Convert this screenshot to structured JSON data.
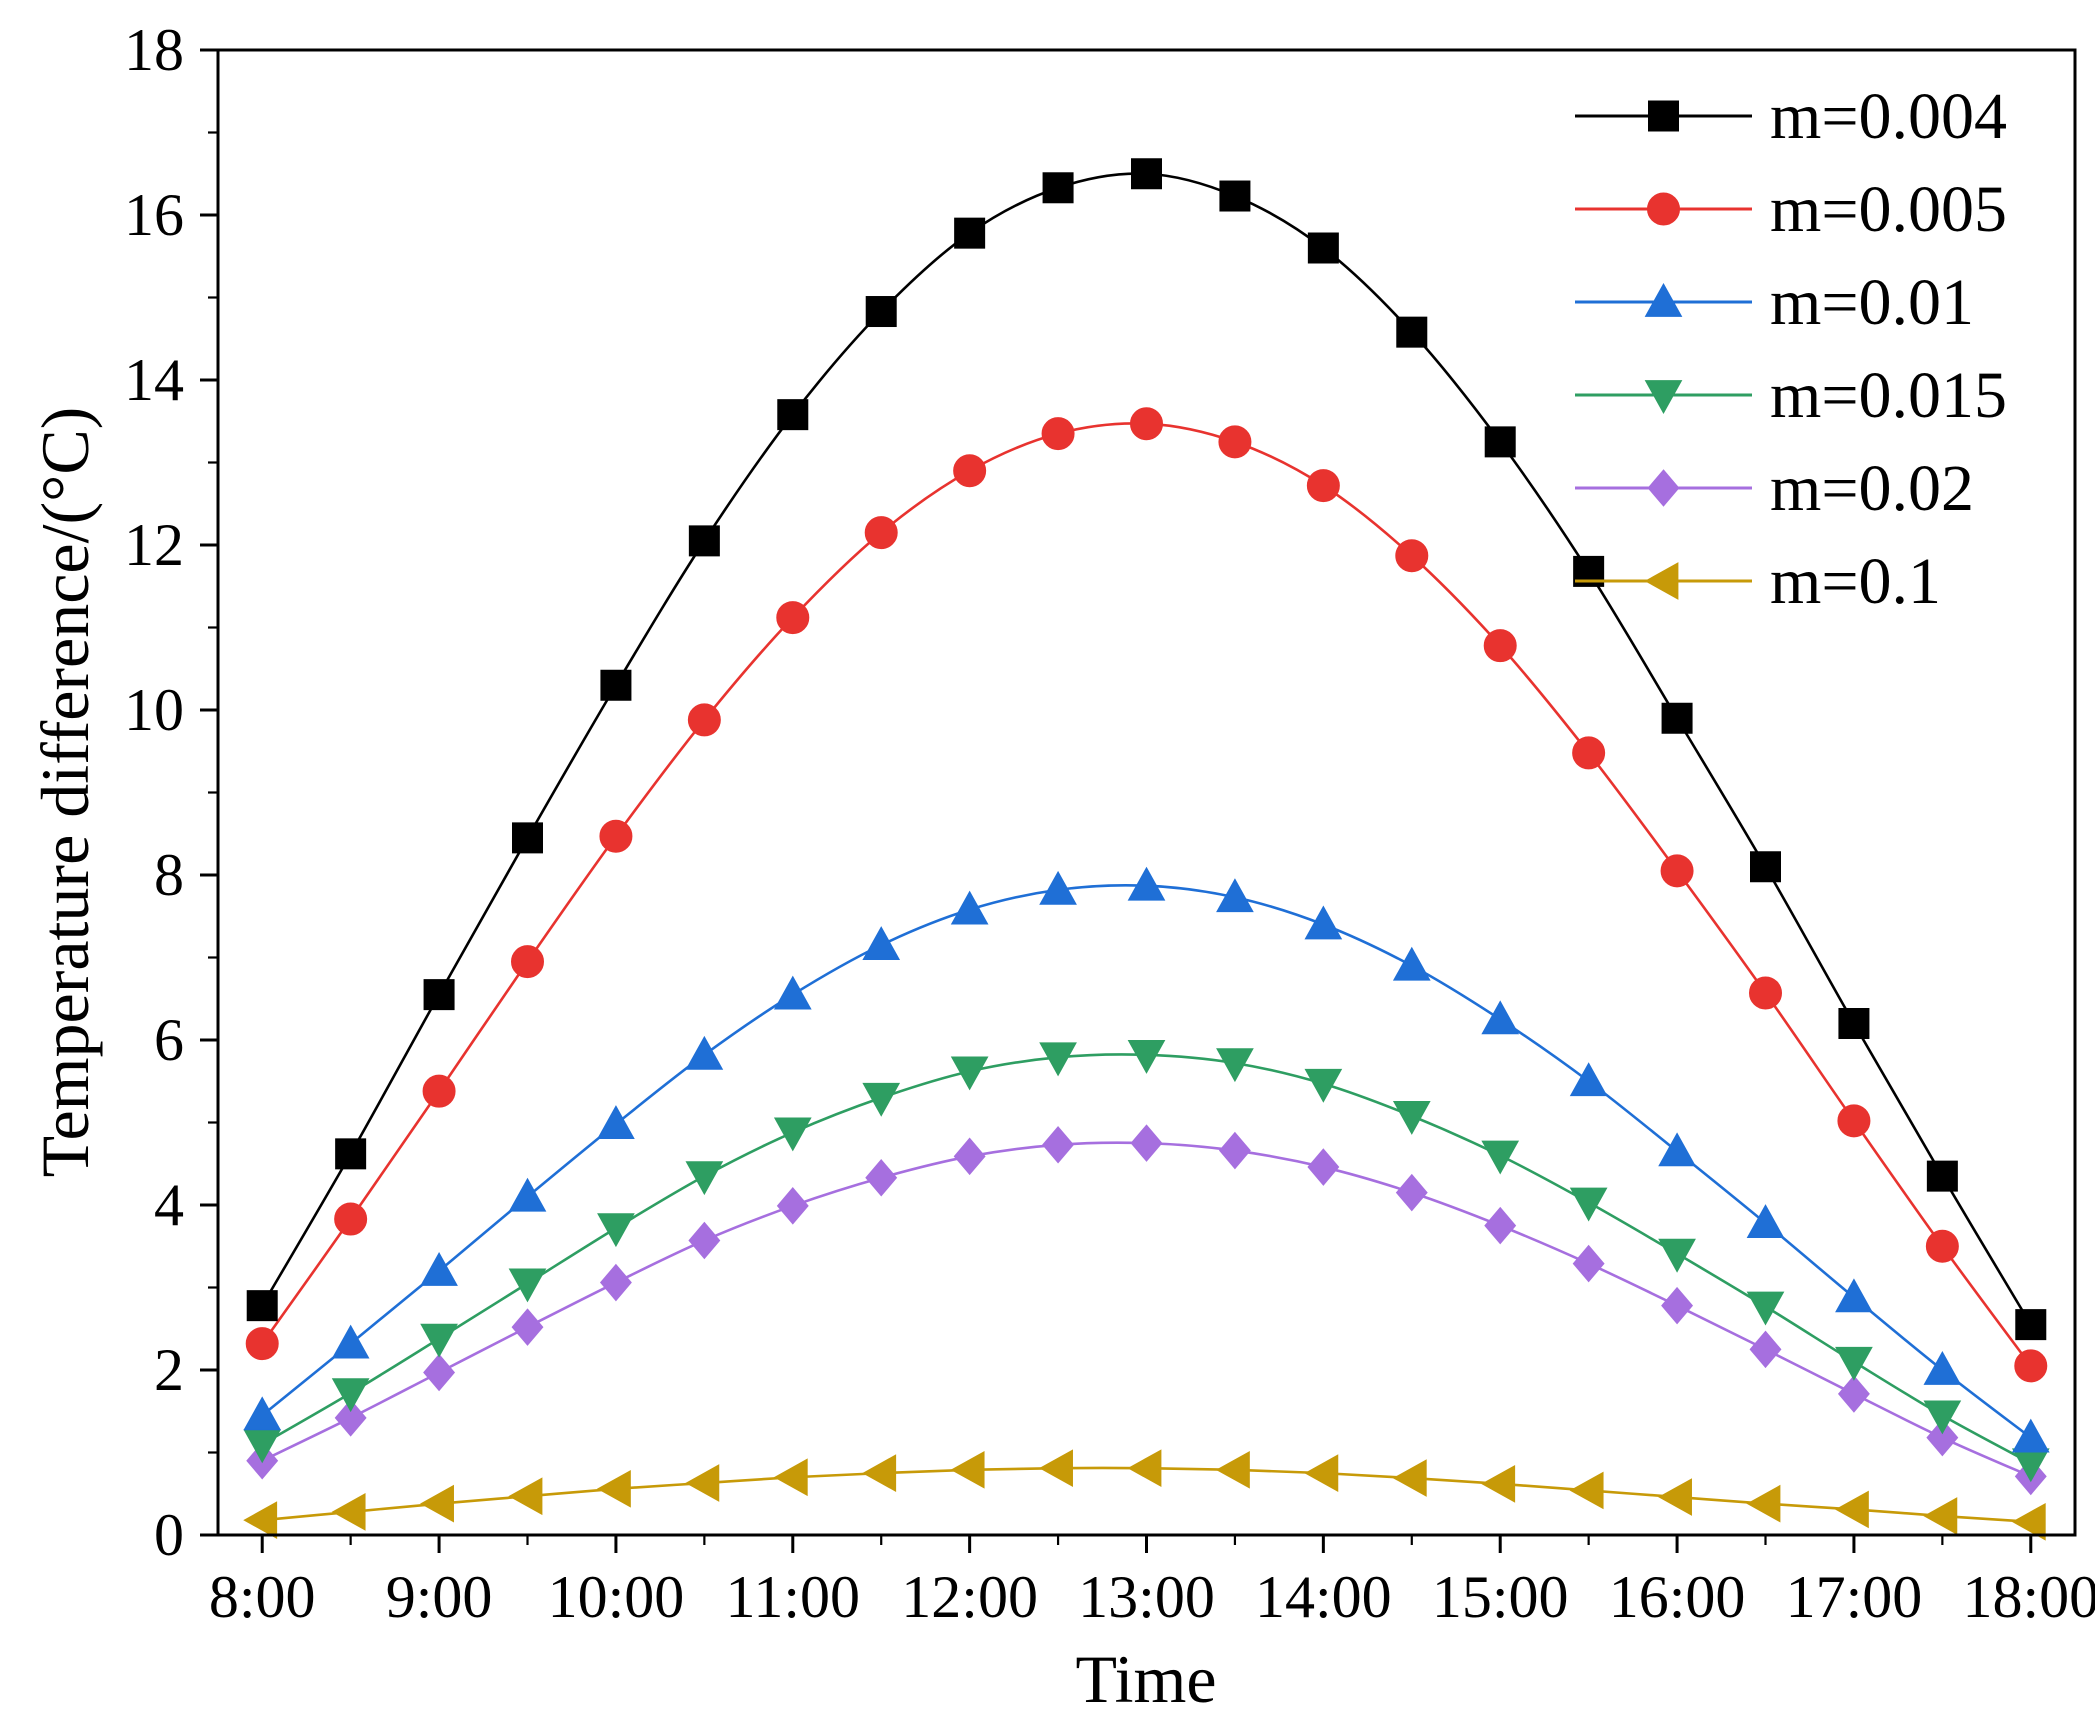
{
  "chart_data": {
    "type": "line",
    "title": "",
    "xlabel": "Time",
    "ylabel": "Temperature difference/(°C)",
    "ylim": [
      0,
      18
    ],
    "y_ticks": [
      0,
      2,
      4,
      6,
      8,
      10,
      12,
      14,
      16,
      18
    ],
    "x_tick_labels": [
      "8:00",
      "9:00",
      "10:00",
      "11:00",
      "12:00",
      "13:00",
      "14:00",
      "15:00",
      "16:00",
      "17:00",
      "18:00"
    ],
    "x": [
      8,
      8.5,
      9,
      9.5,
      10,
      10.5,
      11,
      11.5,
      12,
      12.5,
      13,
      13.5,
      14,
      14.5,
      15,
      15.5,
      16,
      16.5,
      17,
      17.5,
      18
    ],
    "grid": false,
    "legend_position": "top-right",
    "series": [
      {
        "name": "m=0.004",
        "color": "#000000",
        "marker": "square",
        "values": [
          2.78,
          4.62,
          6.55,
          8.45,
          10.3,
          12.05,
          13.58,
          14.83,
          15.78,
          16.33,
          16.5,
          16.23,
          15.6,
          14.58,
          13.25,
          11.68,
          9.9,
          8.1,
          6.2,
          4.35,
          2.55
        ]
      },
      {
        "name": "m=0.005",
        "color": "#e8332f",
        "marker": "circle",
        "values": [
          2.32,
          3.83,
          5.38,
          6.95,
          8.47,
          9.88,
          11.12,
          12.15,
          12.9,
          13.35,
          13.47,
          13.25,
          12.72,
          11.87,
          10.78,
          9.48,
          8.05,
          6.57,
          5.02,
          3.5,
          2.05
        ]
      },
      {
        "name": "m=0.01",
        "color": "#1f6fd6",
        "marker": "triangle-up",
        "values": [
          1.45,
          2.32,
          3.2,
          4.1,
          4.98,
          5.82,
          6.55,
          7.15,
          7.58,
          7.82,
          7.87,
          7.73,
          7.4,
          6.9,
          6.25,
          5.5,
          4.65,
          3.78,
          2.88,
          2.0,
          1.18
        ]
      },
      {
        "name": "m=0.015",
        "color": "#2e9e62",
        "marker": "triangle-down",
        "values": [
          1.1,
          1.72,
          2.38,
          3.05,
          3.72,
          4.35,
          4.88,
          5.3,
          5.62,
          5.79,
          5.82,
          5.72,
          5.47,
          5.08,
          4.6,
          4.03,
          3.41,
          2.77,
          2.1,
          1.45,
          0.87
        ]
      },
      {
        "name": "m=0.02",
        "color": "#a66fdf",
        "marker": "diamond",
        "values": [
          0.9,
          1.42,
          1.97,
          2.52,
          3.06,
          3.57,
          3.99,
          4.33,
          4.59,
          4.73,
          4.75,
          4.66,
          4.46,
          4.15,
          3.75,
          3.29,
          2.78,
          2.25,
          1.71,
          1.18,
          0.71
        ]
      },
      {
        "name": "m=0.1",
        "color": "#c79a08",
        "marker": "triangle-left",
        "values": [
          0.18,
          0.28,
          0.38,
          0.47,
          0.56,
          0.63,
          0.7,
          0.75,
          0.79,
          0.81,
          0.81,
          0.79,
          0.75,
          0.69,
          0.62,
          0.54,
          0.46,
          0.38,
          0.31,
          0.23,
          0.16
        ]
      }
    ]
  }
}
